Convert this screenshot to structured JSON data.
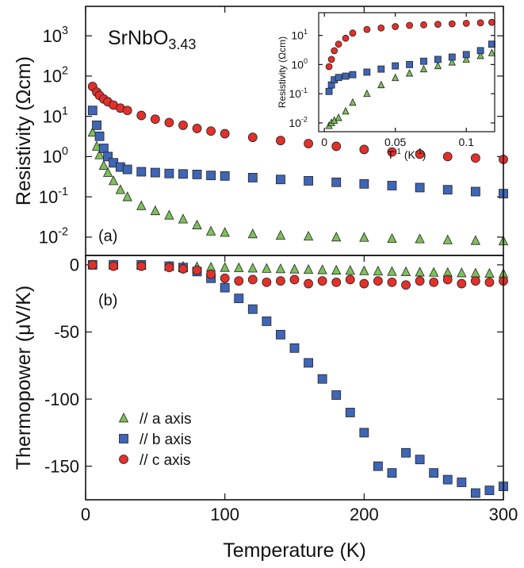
{
  "chart_data": [
    {
      "type": "scatter",
      "panel_label": "(a)",
      "formula": {
        "base": "SrNbO",
        "subscript": "3.43"
      },
      "ylabel": "Resistivity (Ωcm)",
      "log_y": true,
      "xlim": [
        0,
        300
      ],
      "ylim": [
        0.0035,
        5400
      ],
      "yticks": [
        {
          "value": 0.01,
          "label": "10",
          "exponent": "-2"
        },
        {
          "value": 0.1,
          "label": "10",
          "exponent": "-1"
        },
        {
          "value": 1,
          "label": "10",
          "exponent": "0"
        },
        {
          "value": 10,
          "label": "10",
          "exponent": "1"
        },
        {
          "value": 100,
          "label": "10",
          "exponent": "2"
        },
        {
          "value": 1000,
          "label": "10",
          "exponent": "3"
        }
      ],
      "x": [
        5,
        8,
        10,
        13,
        16,
        20,
        25,
        30,
        40,
        50,
        60,
        70,
        80,
        90,
        100,
        120,
        140,
        160,
        180,
        200,
        220,
        240,
        260,
        280,
        300
      ],
      "series": [
        {
          "color": "#7cc05a",
          "marker": "triangle",
          "values": [
            4.0,
            1.8,
            1.1,
            0.6,
            0.4,
            0.25,
            0.15,
            0.1,
            0.06,
            0.045,
            0.035,
            0.028,
            0.02,
            0.014,
            0.013,
            0.012,
            0.011,
            0.0105,
            0.01,
            0.0098,
            0.0092,
            0.009,
            0.0085,
            0.0082,
            0.008
          ]
        },
        {
          "color": "#3f65b5",
          "marker": "square",
          "values": [
            14,
            6,
            3.2,
            1.6,
            1.0,
            0.7,
            0.55,
            0.48,
            0.42,
            0.4,
            0.38,
            0.37,
            0.36,
            0.34,
            0.33,
            0.3,
            0.27,
            0.25,
            0.23,
            0.21,
            0.19,
            0.17,
            0.15,
            0.135,
            0.12
          ]
        },
        {
          "color": "#e2302b",
          "marker": "circle",
          "values": [
            55,
            40,
            33,
            27,
            23,
            19,
            16,
            14,
            10.5,
            8.5,
            7,
            6,
            5,
            4.3,
            3.7,
            3.0,
            2.5,
            2.1,
            1.8,
            1.5,
            1.3,
            1.15,
            1.0,
            0.92,
            0.85
          ]
        }
      ]
    },
    {
      "type": "scatter",
      "panel_label": "(b)",
      "ylabel": "Thermopower (μV/K)",
      "xlabel": "Temperature (K)",
      "xlim": [
        0,
        300
      ],
      "ylim": [
        -175,
        7
      ],
      "xticks": [
        0,
        100,
        200,
        300
      ],
      "yticks": [
        0,
        -50,
        -100,
        -150
      ],
      "legend": "lower left",
      "x": [
        5,
        20,
        40,
        60,
        70,
        80,
        90,
        100,
        110,
        120,
        130,
        140,
        150,
        160,
        170,
        180,
        190,
        200,
        210,
        220,
        230,
        240,
        250,
        260,
        270,
        280,
        290,
        300
      ],
      "series": [
        {
          "name": "// a axis",
          "color": "#7cc05a",
          "marker": "triangle",
          "values": [
            0,
            0,
            -0.5,
            -1,
            -1.2,
            -1.5,
            -1.8,
            -2,
            -2.2,
            -2.5,
            -2.7,
            -3,
            -3.2,
            -3.5,
            -3.7,
            -4,
            -4.2,
            -4.5,
            -4.7,
            -5,
            -5.2,
            -5.4,
            -5.6,
            -5.8,
            -6,
            -6.2,
            -6.4,
            -6.6
          ]
        },
        {
          "name": "// b axis",
          "color": "#3f65b5",
          "marker": "square",
          "values": [
            0,
            0,
            0,
            -1,
            -2,
            -5,
            -10,
            -17,
            -25,
            -33,
            -42,
            -52,
            -62,
            -73,
            -85,
            -97,
            -110,
            -125,
            -150,
            -155,
            -140,
            -145,
            -155,
            -160,
            -162,
            -170,
            -168,
            -165
          ]
        },
        {
          "name": "// c axis",
          "color": "#e2302b",
          "marker": "circle",
          "values": [
            0,
            -1,
            -1,
            -2,
            -3,
            -4,
            -7,
            -10,
            -12,
            -11,
            -13,
            -12,
            -11,
            -14,
            -12,
            -13,
            -11,
            -14,
            -12,
            -13,
            -15,
            -12,
            -13,
            -11,
            -14,
            -12,
            -13,
            -12
          ]
        }
      ]
    },
    {
      "type": "scatter",
      "inset": true,
      "ylabel": "Resistivity (Ωcm)",
      "xlabel_parts": {
        "base": "T",
        "exp": "-1",
        "unit": " (K",
        "unit_exp": "-1",
        "close": ")"
      },
      "log_y": true,
      "xlim": [
        -0.004,
        0.12
      ],
      "ylim": [
        0.005,
        60
      ],
      "xticks": [
        0,
        0.05,
        0.1
      ],
      "yticks": [
        {
          "value": 0.01,
          "label": "10",
          "exponent": "-2"
        },
        {
          "value": 0.1,
          "label": "10",
          "exponent": "-1"
        },
        {
          "value": 1,
          "label": "10",
          "exponent": "0"
        },
        {
          "value": 10,
          "label": "10",
          "exponent": "1"
        }
      ],
      "x": [
        0.0033,
        0.005,
        0.007,
        0.01,
        0.015,
        0.02,
        0.03,
        0.04,
        0.05,
        0.06,
        0.07,
        0.08,
        0.09,
        0.1,
        0.11,
        0.118
      ],
      "series": [
        {
          "color": "#7cc05a",
          "marker": "triangle",
          "values": [
            0.008,
            0.01,
            0.012,
            0.015,
            0.025,
            0.05,
            0.1,
            0.2,
            0.35,
            0.5,
            0.7,
            0.9,
            1.2,
            1.5,
            2,
            2.5
          ]
        },
        {
          "color": "#3f65b5",
          "marker": "square",
          "values": [
            0.12,
            0.2,
            0.3,
            0.36,
            0.4,
            0.45,
            0.55,
            0.7,
            0.9,
            1.0,
            1.3,
            1.5,
            1.8,
            2.2,
            3,
            5
          ]
        },
        {
          "color": "#e2302b",
          "marker": "circle",
          "values": [
            0.85,
            1.5,
            3,
            5,
            8,
            12,
            16,
            18,
            20,
            22,
            23,
            24,
            25,
            26,
            27,
            28
          ]
        }
      ]
    }
  ]
}
